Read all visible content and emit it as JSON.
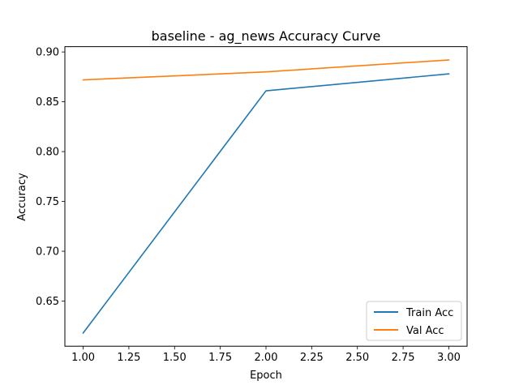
{
  "chart_data": {
    "type": "line",
    "title": "baseline - ag_news Accuracy Curve",
    "xlabel": "Epoch",
    "ylabel": "Accuracy",
    "x": [
      1.0,
      2.0,
      3.0
    ],
    "xlim": [
      0.9,
      3.1
    ],
    "ylim": [
      0.6047,
      0.9053
    ],
    "xticks": [
      1.0,
      1.25,
      1.5,
      1.75,
      2.0,
      2.25,
      2.5,
      2.75,
      3.0
    ],
    "xtick_labels": [
      "1.00",
      "1.25",
      "1.50",
      "1.75",
      "2.00",
      "2.25",
      "2.50",
      "2.75",
      "3.00"
    ],
    "yticks": [
      0.65,
      0.7,
      0.75,
      0.8,
      0.85,
      0.9
    ],
    "ytick_labels": [
      "0.65",
      "0.70",
      "0.75",
      "0.80",
      "0.85",
      "0.90"
    ],
    "grid": false,
    "legend_position": "lower-right",
    "series": [
      {
        "name": "Train Acc",
        "color": "#1f77b4",
        "values": [
          0.618,
          0.861,
          0.878
        ]
      },
      {
        "name": "Val Acc",
        "color": "#ff7f0e",
        "values": [
          0.872,
          0.88,
          0.892
        ]
      }
    ]
  }
}
